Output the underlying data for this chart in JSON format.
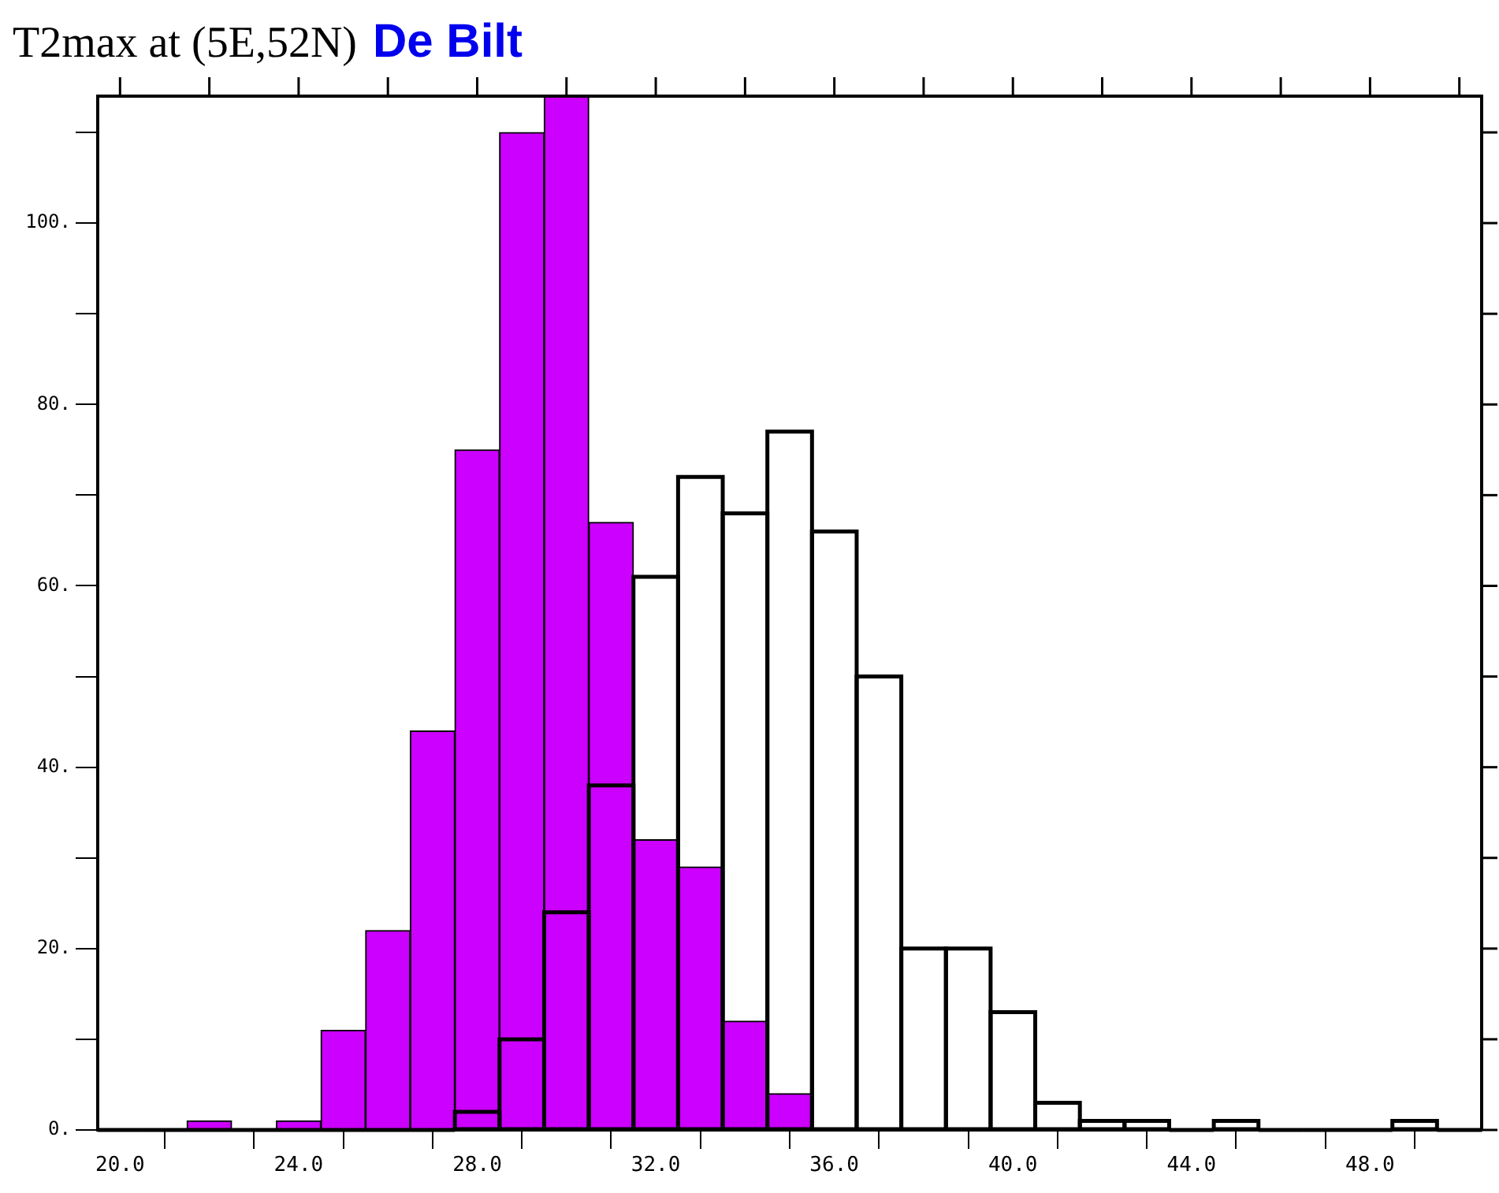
{
  "chart_data": {
    "type": "histogram",
    "title": "T2max at (5E,52N)",
    "subtitle": "De Bilt",
    "bins": [
      19.5,
      20.5,
      21.5,
      22.5,
      23.5,
      24.5,
      25.5,
      26.5,
      27.5,
      28.5,
      29.5,
      30.5,
      31.5,
      32.5,
      33.5,
      34.5,
      35.5,
      36.5,
      37.5,
      38.5,
      39.5,
      40.5,
      41.5,
      42.5,
      43.5,
      44.5,
      45.5,
      46.5,
      47.5,
      48.5,
      49.5,
      50.5
    ],
    "series": [
      {
        "color": "#cc00ff",
        "values": [
          0,
          0,
          1,
          0,
          1,
          11,
          22,
          44,
          75,
          110,
          114,
          67,
          32,
          29,
          12,
          4,
          0,
          0,
          0,
          0,
          0,
          0,
          0,
          0,
          0,
          0,
          0,
          0,
          0,
          0,
          0
        ]
      },
      {
        "color": "#000000",
        "values": [
          0,
          0,
          0,
          0,
          0,
          0,
          0,
          0,
          2,
          10,
          24,
          38,
          61,
          72,
          68,
          77,
          66,
          50,
          20,
          20,
          13,
          3,
          1,
          1,
          0,
          1,
          0,
          0,
          0,
          1,
          0
        ]
      }
    ],
    "xlim": [
      19.5,
      50.5
    ],
    "xticks": [
      {
        "value": 20,
        "label": "20.0"
      },
      {
        "value": 22,
        "label": null
      },
      {
        "value": 24,
        "label": "24.0"
      },
      {
        "value": 26,
        "label": null
      },
      {
        "value": 28,
        "label": "28.0"
      },
      {
        "value": 30,
        "label": null
      },
      {
        "value": 32,
        "label": "32.0"
      },
      {
        "value": 34,
        "label": null
      },
      {
        "value": 36,
        "label": "36.0"
      },
      {
        "value": 38,
        "label": null
      },
      {
        "value": 40,
        "label": "40.0"
      },
      {
        "value": 42,
        "label": null
      },
      {
        "value": 44,
        "label": "44.0"
      },
      {
        "value": 46,
        "label": null
      },
      {
        "value": 48,
        "label": "48.0"
      },
      {
        "value": 50,
        "label": null
      }
    ],
    "ylim": [
      0,
      114
    ],
    "yticks": [
      {
        "value": 0,
        "label": "0."
      },
      {
        "value": 10,
        "label": null
      },
      {
        "value": 20,
        "label": "20."
      },
      {
        "value": 30,
        "label": null
      },
      {
        "value": 40,
        "label": "40."
      },
      {
        "value": 50,
        "label": null
      },
      {
        "value": 60,
        "label": "60."
      },
      {
        "value": 70,
        "label": null
      },
      {
        "value": 80,
        "label": "80."
      },
      {
        "value": 90,
        "label": null
      },
      {
        "value": 100,
        "label": "100."
      },
      {
        "value": 110,
        "label": null
      }
    ],
    "grid": false,
    "legend": false
  }
}
